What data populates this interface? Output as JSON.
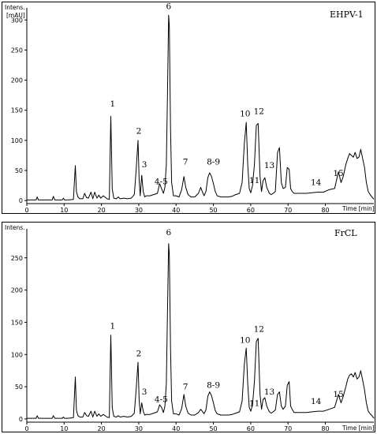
{
  "chart_data": [
    {
      "type": "line",
      "panel": "top",
      "title": "EHPV-1",
      "ylabel_lines": [
        "Intens.",
        "[mAU]"
      ],
      "xlabel": "Time [min]",
      "xlim": [
        0,
        93
      ],
      "ylim": [
        -5,
        320
      ],
      "xticks": [
        0,
        10,
        20,
        30,
        40,
        50,
        60,
        70,
        80
      ],
      "yticks": [
        0,
        50,
        100,
        150,
        200,
        250,
        300
      ],
      "series": [
        {
          "x": [
            0,
            2.5,
            2.8,
            3.1,
            6,
            6.8,
            7.1,
            7.5,
            9.5,
            9.8,
            10.1,
            11,
            12.5,
            13,
            13.3,
            13.7,
            14.2,
            15,
            15.5,
            16,
            16.5,
            17.2,
            17.7,
            18.2,
            18.8,
            19.3,
            19.8,
            20.5,
            21.5,
            22.1,
            22.5,
            22.9,
            23.3,
            24,
            24.5,
            25,
            26,
            27,
            28,
            28.8,
            29.3,
            29.8,
            30.1,
            30.4,
            30.8,
            31.2,
            31.6,
            32,
            33,
            34,
            35,
            35.6,
            36.1,
            36.6,
            37,
            37.4,
            37.7,
            38,
            38.2,
            38.5,
            38.8,
            39.3,
            40,
            40.8,
            41.5,
            42.1,
            42.6,
            43.2,
            44,
            45,
            46,
            46.6,
            47,
            47.5,
            48,
            48.5,
            49,
            49.5,
            50,
            50.5,
            51,
            52,
            53,
            54,
            55,
            56,
            57,
            57.7,
            58.3,
            58.8,
            59.2,
            59.6,
            60,
            60.5,
            61,
            61.5,
            62,
            62.5,
            62.9,
            63.3,
            63.8,
            64.3,
            65,
            65.5,
            66,
            66.6,
            67.2,
            67.7,
            68.2,
            68.7,
            69.3,
            69.8,
            70.3,
            70.7,
            71.1,
            71.6,
            72.5,
            73.5,
            75,
            76.5,
            78,
            79.5,
            81,
            82.5,
            83.5,
            84.2,
            84.8,
            85.5,
            86,
            86.5,
            87,
            87.5,
            88,
            88.5,
            89,
            89.5,
            90,
            90.5,
            91,
            91.5,
            92,
            92.5,
            93
          ],
          "y": [
            1,
            1,
            6,
            1,
            1,
            1,
            7,
            1,
            1,
            4,
            1,
            1,
            2,
            58,
            15,
            6,
            3,
            3,
            12,
            5,
            4,
            14,
            3,
            14,
            4,
            9,
            4,
            8,
            3,
            2,
            140,
            20,
            4,
            3,
            6,
            3,
            4,
            3,
            4,
            10,
            50,
            100,
            35,
            8,
            42,
            15,
            6,
            8,
            8,
            10,
            12,
            28,
            20,
            12,
            22,
            60,
            180,
            308,
            290,
            120,
            30,
            8,
            8,
            6,
            18,
            40,
            22,
            10,
            6,
            6,
            12,
            22,
            15,
            8,
            15,
            38,
            46,
            40,
            28,
            15,
            8,
            6,
            6,
            6,
            7,
            10,
            12,
            30,
            95,
            130,
            60,
            20,
            13,
            25,
            60,
            125,
            128,
            40,
            15,
            33,
            38,
            22,
            12,
            10,
            12,
            15,
            80,
            88,
            30,
            20,
            22,
            55,
            52,
            20,
            15,
            12,
            12,
            12,
            12,
            13,
            14,
            14,
            18,
            20,
            48,
            30,
            40,
            60,
            70,
            78,
            75,
            72,
            80,
            70,
            72,
            85,
            70,
            55,
            30,
            15,
            10,
            6,
            2
          ]
        }
      ],
      "peak_labels": [
        {
          "text": "1",
          "x": 23,
          "y": 156
        },
        {
          "text": "2",
          "x": 30,
          "y": 111
        },
        {
          "text": "3",
          "x": 31.5,
          "y": 55
        },
        {
          "text": "4-5",
          "x": 36,
          "y": 27
        },
        {
          "text": "6",
          "x": 38,
          "y": 318
        },
        {
          "text": "7",
          "x": 42.5,
          "y": 60
        },
        {
          "text": "8-9",
          "x": 50,
          "y": 60
        },
        {
          "text": "10",
          "x": 58.5,
          "y": 140
        },
        {
          "text": "11",
          "x": 61,
          "y": 29
        },
        {
          "text": "12",
          "x": 62.2,
          "y": 144
        },
        {
          "text": "13",
          "x": 65,
          "y": 54
        },
        {
          "text": "14",
          "x": 77.5,
          "y": 26
        },
        {
          "text": "15",
          "x": 83.5,
          "y": 41
        }
      ]
    },
    {
      "type": "line",
      "panel": "bottom",
      "title": "FrCL",
      "ylabel_lines": [
        "Intens."
      ],
      "xlabel": "Time [min]",
      "xlim": [
        0,
        93
      ],
      "ylim": [
        -5,
        295
      ],
      "xticks": [
        0,
        10,
        20,
        30,
        40,
        50,
        60,
        70,
        80
      ],
      "yticks": [
        0,
        50,
        100,
        150,
        200,
        250
      ],
      "series": [
        {
          "x": [
            0,
            2.5,
            2.8,
            3.1,
            6,
            6.8,
            7.1,
            7.5,
            9.5,
            9.8,
            10.1,
            11,
            12.5,
            13,
            13.3,
            13.7,
            14.2,
            15,
            15.5,
            16,
            16.5,
            17.2,
            17.7,
            18.2,
            18.8,
            19.3,
            19.8,
            20.5,
            21.5,
            22.1,
            22.5,
            22.9,
            23.3,
            24,
            24.5,
            25,
            26,
            27,
            28,
            28.8,
            29.3,
            29.8,
            30.1,
            30.4,
            30.8,
            31.2,
            31.6,
            32,
            33,
            34,
            35,
            35.6,
            36.1,
            36.6,
            37,
            37.4,
            37.7,
            38,
            38.2,
            38.5,
            38.8,
            39.3,
            40,
            40.8,
            41.5,
            42.1,
            42.6,
            43.2,
            44,
            45,
            46,
            46.6,
            47,
            47.5,
            48,
            48.5,
            49,
            49.5,
            50,
            50.5,
            51,
            52,
            53,
            54,
            55,
            56,
            57,
            57.7,
            58.3,
            58.8,
            59.2,
            59.6,
            60,
            60.5,
            61,
            61.5,
            62,
            62.5,
            62.9,
            63.3,
            63.8,
            64.3,
            65,
            65.5,
            66,
            66.6,
            67.2,
            67.7,
            68.2,
            68.7,
            69.3,
            69.8,
            70.3,
            70.7,
            71.1,
            71.6,
            72.5,
            73.5,
            75,
            76.5,
            78,
            79.5,
            81,
            82.5,
            83.5,
            84.2,
            84.8,
            85.5,
            86,
            86.5,
            87,
            87.5,
            88,
            88.5,
            89,
            89.5,
            90,
            90.5,
            91,
            91.5,
            92,
            92.5,
            93
          ],
          "y": [
            1,
            1,
            5,
            1,
            1,
            1,
            5,
            1,
            1,
            3,
            1,
            1,
            2,
            65,
            14,
            5,
            3,
            3,
            10,
            5,
            4,
            12,
            3,
            12,
            4,
            8,
            4,
            7,
            3,
            2,
            130,
            18,
            4,
            3,
            5,
            3,
            4,
            3,
            4,
            9,
            45,
            88,
            30,
            8,
            25,
            12,
            6,
            7,
            7,
            9,
            11,
            22,
            18,
            10,
            20,
            55,
            170,
            272,
            255,
            110,
            28,
            8,
            8,
            6,
            16,
            38,
            20,
            9,
            6,
            6,
            10,
            15,
            12,
            8,
            14,
            35,
            42,
            36,
            25,
            13,
            8,
            6,
            6,
            6,
            7,
            9,
            11,
            28,
            85,
            110,
            55,
            18,
            12,
            22,
            58,
            120,
            125,
            38,
            15,
            30,
            33,
            20,
            11,
            9,
            11,
            14,
            38,
            42,
            20,
            15,
            20,
            52,
            58,
            20,
            15,
            10,
            10,
            10,
            10,
            11,
            12,
            12,
            15,
            18,
            38,
            25,
            35,
            50,
            62,
            68,
            70,
            65,
            72,
            62,
            65,
            75,
            60,
            45,
            25,
            12,
            8,
            5,
            1
          ]
        }
      ],
      "peak_labels": [
        {
          "text": "1",
          "x": 23,
          "y": 140
        },
        {
          "text": "2",
          "x": 30,
          "y": 97
        },
        {
          "text": "3",
          "x": 31.5,
          "y": 38
        },
        {
          "text": "4-5",
          "x": 36,
          "y": 26
        },
        {
          "text": "6",
          "x": 38,
          "y": 285
        },
        {
          "text": "7",
          "x": 42.5,
          "y": 46
        },
        {
          "text": "8-9",
          "x": 50,
          "y": 48
        },
        {
          "text": "10",
          "x": 58.5,
          "y": 118
        },
        {
          "text": "11",
          "x": 61,
          "y": 20
        },
        {
          "text": "12",
          "x": 62.2,
          "y": 135
        },
        {
          "text": "13",
          "x": 65,
          "y": 38
        },
        {
          "text": "14",
          "x": 77.5,
          "y": 23
        },
        {
          "text": "15",
          "x": 83.5,
          "y": 34
        }
      ]
    }
  ]
}
